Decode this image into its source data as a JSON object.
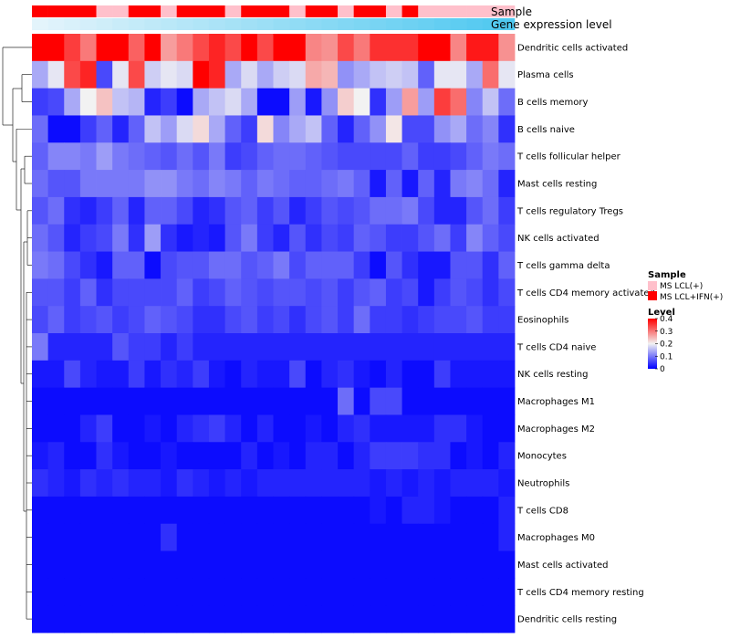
{
  "chart_data": {
    "type": "heatmap",
    "title": "",
    "annotation_tracks": [
      "Sample",
      "Gene expression level"
    ],
    "columns": 30,
    "sample_annotation": [
      "MS LCL+IFN(+)",
      "MS LCL+IFN(+)",
      "MS LCL+IFN(+)",
      "MS LCL+IFN(+)",
      "MS LCL(+)",
      "MS LCL(+)",
      "MS LCL+IFN(+)",
      "MS LCL+IFN(+)",
      "MS LCL(+)",
      "MS LCL+IFN(+)",
      "MS LCL+IFN(+)",
      "MS LCL+IFN(+)",
      "MS LCL(+)",
      "MS LCL+IFN(+)",
      "MS LCL+IFN(+)",
      "MS LCL+IFN(+)",
      "MS LCL(+)",
      "MS LCL+IFN(+)",
      "MS LCL+IFN(+)",
      "MS LCL(+)",
      "MS LCL+IFN(+)",
      "MS LCL+IFN(+)",
      "MS LCL(+)",
      "MS LCL+IFN(+)",
      "MS LCL(+)",
      "MS LCL(+)",
      "MS LCL(+)",
      "MS LCL(+)",
      "MS LCL(+)",
      "MS LCL(+)"
    ],
    "gene_expression_gradient": [
      "#e3f4fb",
      "#4fc8f0"
    ],
    "rows": [
      "Dendritic cells activated",
      "Plasma cells",
      "B cells memory",
      "B cells naive",
      "T cells follicular helper",
      "Mast cells resting",
      "T cells regulatory  Tregs",
      "NK cells activated",
      "T cells gamma delta",
      "T cells CD4 memory activated",
      "Eosinophils",
      "T cells CD4 naive",
      "NK cells resting",
      "Macrophages M1",
      "Macrophages M2",
      "Monocytes",
      "Neutrophils",
      "T cells CD8",
      "Macrophages M0",
      "Mast cells activated",
      "T cells CD4 memory resting",
      "Dendritic cells resting"
    ],
    "values": [
      [
        0.4,
        0.4,
        0.35,
        0.3,
        0.4,
        0.4,
        0.32,
        0.4,
        0.27,
        0.3,
        0.34,
        0.37,
        0.34,
        0.4,
        0.34,
        0.4,
        0.4,
        0.29,
        0.28,
        0.34,
        0.3,
        0.36,
        0.36,
        0.36,
        0.4,
        0.4,
        0.29,
        0.38,
        0.38,
        0.28
      ],
      [
        0.14,
        0.19,
        0.34,
        0.37,
        0.06,
        0.19,
        0.34,
        0.17,
        0.19,
        0.18,
        0.4,
        0.37,
        0.14,
        0.18,
        0.14,
        0.17,
        0.18,
        0.26,
        0.25,
        0.12,
        0.14,
        0.16,
        0.17,
        0.16,
        0.08,
        0.19,
        0.19,
        0.14,
        0.31,
        0.19
      ],
      [
        0.05,
        0.06,
        0.14,
        0.2,
        0.24,
        0.16,
        0.15,
        0.03,
        0.05,
        0.01,
        0.14,
        0.16,
        0.18,
        0.14,
        0.01,
        0.01,
        0.13,
        0.02,
        0.12,
        0.23,
        0.2,
        0.04,
        0.13,
        0.27,
        0.13,
        0.35,
        0.31,
        0.11,
        0.16,
        0.09
      ],
      [
        0.09,
        0.01,
        0.01,
        0.05,
        0.08,
        0.03,
        0.08,
        0.16,
        0.13,
        0.18,
        0.22,
        0.14,
        0.08,
        0.05,
        0.22,
        0.11,
        0.14,
        0.16,
        0.08,
        0.03,
        0.08,
        0.12,
        0.21,
        0.06,
        0.06,
        0.12,
        0.14,
        0.09,
        0.11,
        0.04
      ],
      [
        0.08,
        0.11,
        0.11,
        0.1,
        0.13,
        0.1,
        0.09,
        0.08,
        0.07,
        0.09,
        0.07,
        0.1,
        0.05,
        0.06,
        0.08,
        0.09,
        0.09,
        0.08,
        0.07,
        0.06,
        0.06,
        0.06,
        0.06,
        0.08,
        0.05,
        0.05,
        0.06,
        0.08,
        0.1,
        0.09
      ],
      [
        0.09,
        0.07,
        0.07,
        0.1,
        0.1,
        0.1,
        0.1,
        0.12,
        0.12,
        0.1,
        0.09,
        0.11,
        0.1,
        0.08,
        0.1,
        0.09,
        0.08,
        0.08,
        0.09,
        0.1,
        0.08,
        0.02,
        0.08,
        0.02,
        0.08,
        0.03,
        0.1,
        0.11,
        0.09,
        0.03
      ],
      [
        0.07,
        0.09,
        0.04,
        0.03,
        0.05,
        0.08,
        0.03,
        0.08,
        0.08,
        0.06,
        0.03,
        0.04,
        0.07,
        0.08,
        0.05,
        0.07,
        0.03,
        0.05,
        0.07,
        0.06,
        0.07,
        0.09,
        0.09,
        0.1,
        0.06,
        0.03,
        0.03,
        0.07,
        0.09,
        0.05
      ],
      [
        0.09,
        0.07,
        0.03,
        0.05,
        0.06,
        0.1,
        0.04,
        0.13,
        0.04,
        0.02,
        0.03,
        0.02,
        0.07,
        0.1,
        0.05,
        0.03,
        0.07,
        0.04,
        0.06,
        0.05,
        0.08,
        0.07,
        0.05,
        0.05,
        0.07,
        0.09,
        0.05,
        0.11,
        0.08,
        0.06
      ],
      [
        0.1,
        0.09,
        0.06,
        0.04,
        0.02,
        0.08,
        0.08,
        0.01,
        0.06,
        0.07,
        0.07,
        0.09,
        0.09,
        0.07,
        0.08,
        0.1,
        0.06,
        0.08,
        0.08,
        0.08,
        0.05,
        0.01,
        0.07,
        0.04,
        0.02,
        0.02,
        0.07,
        0.07,
        0.04,
        0.08
      ],
      [
        0.07,
        0.07,
        0.05,
        0.08,
        0.04,
        0.06,
        0.06,
        0.06,
        0.06,
        0.08,
        0.05,
        0.06,
        0.08,
        0.07,
        0.06,
        0.07,
        0.07,
        0.06,
        0.07,
        0.05,
        0.07,
        0.08,
        0.05,
        0.06,
        0.02,
        0.05,
        0.07,
        0.06,
        0.04,
        0.06
      ],
      [
        0.06,
        0.08,
        0.05,
        0.06,
        0.07,
        0.05,
        0.06,
        0.08,
        0.07,
        0.06,
        0.04,
        0.04,
        0.06,
        0.07,
        0.05,
        0.06,
        0.04,
        0.06,
        0.07,
        0.05,
        0.09,
        0.05,
        0.05,
        0.04,
        0.05,
        0.06,
        0.06,
        0.07,
        0.05,
        0.05
      ],
      [
        0.1,
        0.03,
        0.03,
        0.03,
        0.03,
        0.07,
        0.05,
        0.05,
        0.03,
        0.05,
        0.03,
        0.03,
        0.03,
        0.03,
        0.03,
        0.03,
        0.03,
        0.03,
        0.03,
        0.03,
        0.03,
        0.03,
        0.03,
        0.03,
        0.03,
        0.03,
        0.03,
        0.03,
        0.03,
        0.03
      ],
      [
        0.02,
        0.02,
        0.06,
        0.03,
        0.02,
        0.02,
        0.05,
        0.02,
        0.04,
        0.03,
        0.05,
        0.02,
        0.01,
        0.03,
        0.02,
        0.02,
        0.06,
        0.01,
        0.03,
        0.04,
        0.02,
        0.01,
        0.03,
        0.01,
        0.01,
        0.05,
        0.02,
        0.02,
        0.02,
        0.02
      ],
      [
        0.01,
        0.01,
        0.01,
        0.01,
        0.01,
        0.01,
        0.01,
        0.01,
        0.01,
        0.01,
        0.01,
        0.01,
        0.01,
        0.01,
        0.01,
        0.01,
        0.01,
        0.01,
        0.01,
        0.09,
        0.01,
        0.06,
        0.06,
        0.01,
        0.01,
        0.01,
        0.01,
        0.01,
        0.01,
        0.01
      ],
      [
        0.01,
        0.01,
        0.01,
        0.03,
        0.05,
        0.01,
        0.01,
        0.02,
        0.01,
        0.03,
        0.04,
        0.05,
        0.03,
        0.01,
        0.03,
        0.01,
        0.01,
        0.02,
        0.01,
        0.03,
        0.04,
        0.02,
        0.02,
        0.02,
        0.02,
        0.04,
        0.04,
        0.02,
        0.01,
        0.01
      ],
      [
        0.02,
        0.03,
        0.01,
        0.01,
        0.04,
        0.02,
        0.01,
        0.01,
        0.02,
        0.01,
        0.01,
        0.01,
        0.01,
        0.03,
        0.01,
        0.02,
        0.01,
        0.03,
        0.03,
        0.01,
        0.03,
        0.05,
        0.05,
        0.05,
        0.04,
        0.04,
        0.01,
        0.02,
        0.01,
        0.03
      ],
      [
        0.04,
        0.03,
        0.02,
        0.04,
        0.03,
        0.04,
        0.03,
        0.03,
        0.02,
        0.04,
        0.03,
        0.02,
        0.03,
        0.02,
        0.03,
        0.03,
        0.03,
        0.03,
        0.03,
        0.03,
        0.03,
        0.02,
        0.03,
        0.02,
        0.03,
        0.02,
        0.03,
        0.03,
        0.03,
        0.02
      ],
      [
        0.01,
        0.01,
        0.01,
        0.01,
        0.01,
        0.01,
        0.01,
        0.01,
        0.01,
        0.01,
        0.01,
        0.01,
        0.01,
        0.01,
        0.01,
        0.01,
        0.01,
        0.01,
        0.01,
        0.01,
        0.01,
        0.02,
        0.01,
        0.03,
        0.03,
        0.02,
        0.01,
        0.01,
        0.01,
        0.03
      ],
      [
        0.01,
        0.01,
        0.01,
        0.01,
        0.01,
        0.01,
        0.01,
        0.01,
        0.04,
        0.01,
        0.01,
        0.01,
        0.01,
        0.01,
        0.01,
        0.01,
        0.01,
        0.01,
        0.01,
        0.01,
        0.01,
        0.01,
        0.01,
        0.01,
        0.01,
        0.01,
        0.01,
        0.01,
        0.01,
        0.03
      ],
      [
        0.01,
        0.01,
        0.01,
        0.01,
        0.01,
        0.01,
        0.01,
        0.01,
        0.01,
        0.01,
        0.01,
        0.01,
        0.01,
        0.01,
        0.01,
        0.01,
        0.01,
        0.01,
        0.01,
        0.01,
        0.01,
        0.01,
        0.01,
        0.01,
        0.01,
        0.01,
        0.01,
        0.01,
        0.01,
        0.01
      ],
      [
        0.01,
        0.01,
        0.01,
        0.01,
        0.01,
        0.01,
        0.01,
        0.01,
        0.01,
        0.01,
        0.01,
        0.01,
        0.01,
        0.01,
        0.01,
        0.01,
        0.01,
        0.01,
        0.01,
        0.01,
        0.01,
        0.01,
        0.01,
        0.01,
        0.01,
        0.01,
        0.01,
        0.01,
        0.01,
        0.01
      ],
      [
        0.01,
        0.01,
        0.01,
        0.01,
        0.01,
        0.01,
        0.01,
        0.01,
        0.01,
        0.01,
        0.01,
        0.01,
        0.01,
        0.01,
        0.01,
        0.01,
        0.01,
        0.01,
        0.01,
        0.01,
        0.01,
        0.01,
        0.01,
        0.01,
        0.01,
        0.01,
        0.01,
        0.01,
        0.01,
        0.01
      ]
    ],
    "color_scale": {
      "low": "#0000ff",
      "mid": "#f2f2f2",
      "high": "#ff0000",
      "domain": [
        0,
        0.2,
        0.4
      ]
    },
    "legend": {
      "sample_title": "Sample",
      "sample_entries": [
        {
          "label": "MS LCL(+)",
          "color": "#ffc0cb"
        },
        {
          "label": "MS LCL+IFN(+)",
          "color": "#ff0000"
        }
      ],
      "level_title": "Level",
      "level_ticks": [
        "0.4",
        "0.3",
        "0.2",
        "0.1",
        "0"
      ],
      "level_tick_values": [
        0.4,
        0.3,
        0.2,
        0.1,
        0
      ],
      "placement": "right"
    },
    "dendrogram": "rows"
  }
}
